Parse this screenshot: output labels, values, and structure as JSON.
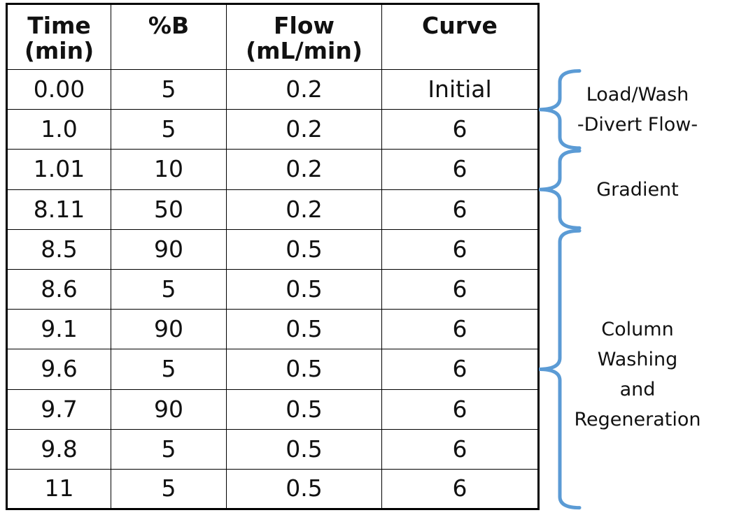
{
  "table": {
    "headers": [
      [
        "Time",
        "(min)"
      ],
      [
        "%B"
      ],
      [
        "Flow",
        "(mL/min)"
      ],
      [
        "Curve"
      ]
    ],
    "rows": [
      [
        "0.00",
        "5",
        "0.2",
        "Initial"
      ],
      [
        "1.0",
        "5",
        "0.2",
        "6"
      ],
      [
        "1.01",
        "10",
        "0.2",
        "6"
      ],
      [
        "8.11",
        "50",
        "0.2",
        "6"
      ],
      [
        "8.5",
        "90",
        "0.5",
        "6"
      ],
      [
        "8.6",
        "5",
        "0.5",
        "6"
      ],
      [
        "9.1",
        "90",
        "0.5",
        "6"
      ],
      [
        "9.6",
        "5",
        "0.5",
        "6"
      ],
      [
        "9.7",
        "90",
        "0.5",
        "6"
      ],
      [
        "9.8",
        "5",
        "0.5",
        "6"
      ],
      [
        "11",
        "5",
        "0.5",
        "6"
      ]
    ]
  },
  "annotations": {
    "brace_color": "#5b9bd5",
    "groups": [
      {
        "lines": [
          "Load/Wash",
          "-Divert Flow-"
        ],
        "row_start": 0,
        "row_end": 1
      },
      {
        "lines": [
          "Gradient"
        ],
        "row_start": 2,
        "row_end": 3
      },
      {
        "lines": [
          "Column",
          "Washing",
          "and",
          "Regeneration"
        ],
        "row_start": 4,
        "row_end": 10
      }
    ]
  }
}
